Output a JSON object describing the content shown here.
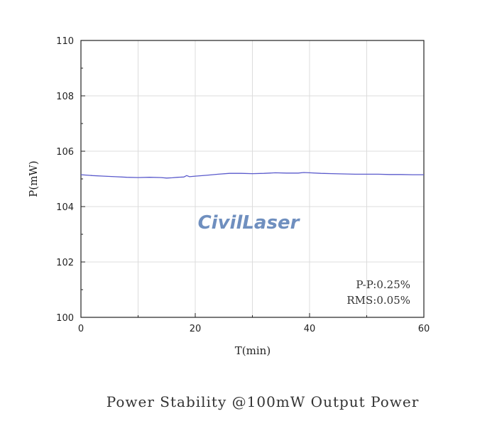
{
  "chart_data": {
    "type": "line",
    "xlabel": "T(min)",
    "ylabel": "P(mW)",
    "xlim": [
      0,
      60
    ],
    "ylim": [
      100,
      110
    ],
    "xticks": [
      0,
      20,
      40,
      60
    ],
    "yticks": [
      100,
      102,
      104,
      106,
      108,
      110
    ],
    "grid": true,
    "series_color": "#5a5acc",
    "series": [
      {
        "x": [
          0,
          2,
          4,
          6,
          8,
          10,
          12,
          14,
          15,
          16,
          17,
          18,
          18.5,
          19,
          20,
          22,
          24,
          26,
          28,
          30,
          32,
          34,
          36,
          38,
          39,
          40,
          42,
          44,
          46,
          48,
          50,
          52,
          54,
          56,
          58,
          60
        ],
        "y": [
          105.15,
          105.12,
          105.1,
          105.08,
          105.06,
          105.05,
          105.06,
          105.05,
          105.03,
          105.04,
          105.06,
          105.07,
          105.12,
          105.08,
          105.1,
          105.13,
          105.17,
          105.2,
          105.2,
          105.19,
          105.2,
          105.22,
          105.21,
          105.21,
          105.23,
          105.22,
          105.2,
          105.19,
          105.18,
          105.17,
          105.17,
          105.17,
          105.16,
          105.16,
          105.15,
          105.15
        ]
      }
    ],
    "annotations": [
      "P-P:0.25%",
      "RMS:0.05%"
    ]
  },
  "watermark": "CivilLaser",
  "caption": "Power Stability @100mW Output Power"
}
